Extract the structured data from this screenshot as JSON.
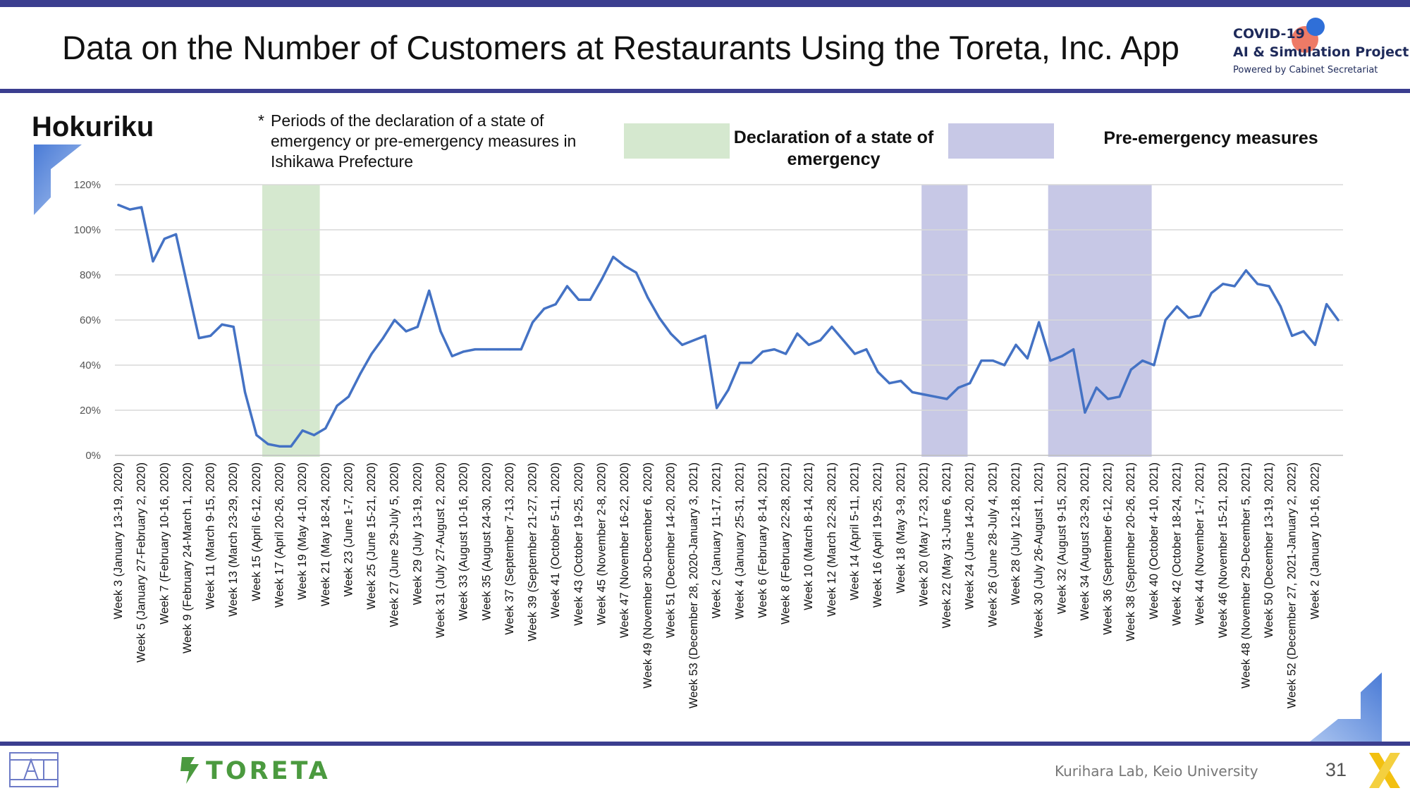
{
  "header": {
    "title": "Data on the Number of Customers at Restaurants Using the Toreta, Inc. App",
    "logo_line1": "COVID-19",
    "logo_line2": "AI & Simulation Project",
    "logo_line3": "Powered by Cabinet Secretariat"
  },
  "region": "Hokuriku",
  "note": {
    "star": "*",
    "text": "Periods of the declaration of a state of emergency or pre-emergency measures in Ishikawa Prefecture"
  },
  "legend": {
    "emergency_label": "Declaration of a state of emergency",
    "pre_emergency_label": "Pre-emergency measures",
    "emergency_color": "#d5e8cf",
    "pre_emergency_color": "#c7c8e6"
  },
  "footer": {
    "lab": "Kurihara Lab, Keio University",
    "page": "31",
    "brand": "TORETA"
  },
  "chart_data": {
    "type": "line",
    "title": "",
    "xlabel": "",
    "ylabel": "",
    "ylim": [
      0,
      120
    ],
    "yticks": [
      "0%",
      "20%",
      "40%",
      "60%",
      "80%",
      "100%",
      "120%"
    ],
    "line_color": "#4472c4",
    "grid": true,
    "x_labels": [
      "Week 3 (January 13-19, 2020)",
      "Week 5 (January 27-February 2, 2020)",
      "Week 7 (February 10-16, 2020)",
      "Week 9 (February 24-March 1, 2020)",
      "Week 11 (March 9-15, 2020)",
      "Week 13 (March 23-29, 2020)",
      "Week 15 (April 6-12, 2020)",
      "Week 17 (April 20-26, 2020)",
      "Week 19 (May 4-10, 2020)",
      "Week 21 (May 18-24, 2020)",
      "Week 23 (June 1-7, 2020)",
      "Week 25 (June 15-21, 2020)",
      "Week 27 (June 29-July 5, 2020)",
      "Week 29 (July 13-19, 2020)",
      "Week 31 (July 27-August 2, 2020)",
      "Week 33 (August 10-16, 2020)",
      "Week 35 (August 24-30, 2020)",
      "Week 37 (September 7-13, 2020)",
      "Week 39 (September 21-27, 2020)",
      "Week 41 (October 5-11, 2020)",
      "Week 43 (October 19-25, 2020)",
      "Week 45 (November 2-8, 2020)",
      "Week 47 (November 16-22, 2020)",
      "Week 49 (November 30-December 6, 2020)",
      "Week 51 (December 14-20, 2020)",
      "Week 53 (December 28, 2020-January 3, 2021)",
      "Week 2 (January 11-17, 2021)",
      "Week 4 (January 25-31, 2021)",
      "Week 6 (February 8-14, 2021)",
      "Week 8 (February 22-28, 2021)",
      "Week 10 (March 8-14, 2021)",
      "Week 12 (March 22-28, 2021)",
      "Week 14 (April 5-11, 2021)",
      "Week 16 (April 19-25, 2021)",
      "Week 18 (May 3-9, 2021)",
      "Week 20 (May 17-23, 2021)",
      "Week 22 (May 31-June 6, 2021)",
      "Week 24 (June 14-20, 2021)",
      "Week 26 (June 28-July 4, 2021)",
      "Week 28 (July 12-18, 2021)",
      "Week 30 (July 26-August 1, 2021)",
      "Week 32 (August 9-15, 2021)",
      "Week 34 (August 23-29, 2021)",
      "Week 36 (September 6-12, 2021)",
      "Week 38 (September 20-26, 2021)",
      "Week 40 (October 4-10, 2021)",
      "Week 42 (October 18-24, 2021)",
      "Week 44 (November 1-7, 2021)",
      "Week 46 (November 15-21, 2021)",
      "Week 48 (November 29-December 5, 2021)",
      "Week 50 (December 13-19, 2021)",
      "Week 52 (December 27, 2021-January 2, 2022)",
      "Week 2 (January 10-16, 2022)"
    ],
    "values": [
      111,
      109,
      110,
      86,
      96,
      98,
      75,
      52,
      53,
      58,
      57,
      28,
      9,
      5,
      4,
      4,
      11,
      9,
      12,
      22,
      26,
      36,
      45,
      52,
      60,
      55,
      57,
      73,
      55,
      44,
      46,
      47,
      47,
      47,
      47,
      47,
      59,
      65,
      67,
      75,
      69,
      69,
      78,
      88,
      84,
      81,
      70,
      61,
      54,
      49,
      51,
      53,
      21,
      29,
      41,
      41,
      46,
      47,
      45,
      54,
      49,
      51,
      57,
      51,
      45,
      47,
      37,
      32,
      33,
      28,
      27,
      26,
      25,
      30,
      32,
      42,
      42,
      40,
      49,
      43,
      59,
      42,
      44,
      47,
      19,
      30,
      25,
      26,
      38,
      42,
      40,
      60,
      66,
      61,
      62,
      72,
      76,
      75,
      82,
      76,
      75,
      66,
      53,
      55,
      49,
      67,
      60
    ],
    "shaded_periods": [
      {
        "series": "emergency",
        "start_index": 12.5,
        "end_index": 17.5
      },
      {
        "series": "pre_emergency",
        "start_index": 69.8,
        "end_index": 73.8
      },
      {
        "series": "pre_emergency",
        "start_index": 80.8,
        "end_index": 89.8
      }
    ]
  }
}
